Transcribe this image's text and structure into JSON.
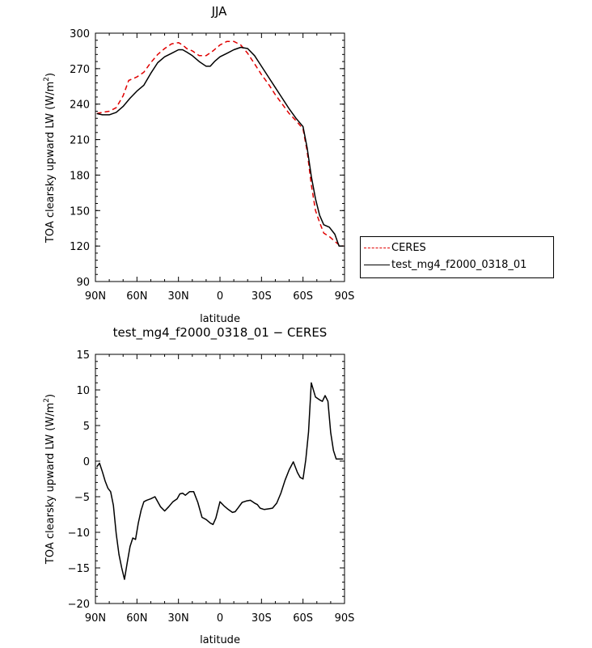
{
  "chart_data": [
    {
      "type": "line",
      "title": "JJA",
      "xlabel": "latitude",
      "ylabel": "TOA clearsky upward LW (W/m",
      "ylabel_sup": "2",
      "ylabel_end": ")",
      "xlim": [
        -90,
        90
      ],
      "ylim": [
        90,
        300
      ],
      "xtick_values": [
        -90,
        -60,
        -30,
        0,
        30,
        60,
        90
      ],
      "xtick_labels": [
        "90N",
        "60N",
        "30N",
        "0",
        "30S",
        "60S",
        "90S"
      ],
      "ytick_values": [
        90,
        120,
        150,
        180,
        210,
        240,
        270,
        300
      ],
      "ytick_labels": [
        "90",
        "120",
        "150",
        "180",
        "210",
        "240",
        "270",
        "300"
      ],
      "legend_position": "right",
      "series": [
        {
          "name": "CERES",
          "color": "#e00000",
          "dash": "dashed",
          "x": [
            -89,
            -85,
            -80,
            -75,
            -70,
            -66,
            -60,
            -55,
            -50,
            -45,
            -40,
            -35,
            -30,
            -27,
            -24,
            -20,
            -15,
            -10,
            -5,
            0,
            5,
            10,
            15,
            20,
            25,
            30,
            35,
            40,
            45,
            50,
            55,
            60,
            63,
            66,
            69,
            72,
            75,
            79,
            83,
            86,
            89
          ],
          "y": [
            232,
            233,
            234,
            237,
            247,
            260,
            263,
            267,
            275,
            282,
            287,
            291,
            292,
            290,
            287,
            285,
            281,
            281,
            285,
            290,
            293,
            293,
            290,
            283,
            274,
            265,
            257,
            248,
            240,
            232,
            226,
            219,
            200,
            172,
            150,
            140,
            131,
            128,
            124,
            121,
            120
          ]
        },
        {
          "name": "test_mg4_f2000_0318_01",
          "color": "#000000",
          "dash": "solid",
          "x": [
            -89,
            -85,
            -80,
            -75,
            -70,
            -65,
            -60,
            -55,
            -50,
            -45,
            -40,
            -35,
            -30,
            -27,
            -24,
            -20,
            -15,
            -10,
            -7,
            -4,
            0,
            5,
            10,
            15,
            20,
            25,
            30,
            35,
            40,
            45,
            50,
            55,
            60,
            63,
            66,
            69,
            72,
            75,
            79,
            83,
            86,
            89
          ],
          "y": [
            232,
            231,
            231,
            233,
            238,
            245,
            251,
            256,
            266,
            275,
            280,
            283,
            286,
            286,
            284,
            281,
            276,
            272,
            272,
            276,
            280,
            283,
            286,
            288,
            287,
            281,
            272,
            263,
            254,
            245,
            236,
            228,
            221,
            203,
            179,
            160,
            146,
            138,
            136,
            130,
            120,
            120
          ]
        }
      ]
    },
    {
      "type": "line",
      "title": "test_mg4_f2000_0318_01 − CERES",
      "xlabel": "latitude",
      "ylabel": "TOA clearsky upward LW (W/m",
      "ylabel_sup": "2",
      "ylabel_end": ")",
      "xlim": [
        -90,
        90
      ],
      "ylim": [
        -20,
        15
      ],
      "xtick_values": [
        -90,
        -60,
        -30,
        0,
        30,
        60,
        90
      ],
      "xtick_labels": [
        "90N",
        "60N",
        "30N",
        "0",
        "30S",
        "60S",
        "90S"
      ],
      "ytick_values": [
        -20,
        -15,
        -10,
        -5,
        0,
        5,
        10,
        15
      ],
      "ytick_labels": [
        "−20",
        "−15",
        "−10",
        "−5",
        "0",
        "5",
        "10",
        "15"
      ],
      "series": [
        {
          "color": "#000000",
          "dash": "solid",
          "x": [
            -89,
            -87,
            -85,
            -83,
            -81,
            -79,
            -77,
            -75,
            -73,
            -71,
            -69,
            -67,
            -65,
            -63,
            -61,
            -59,
            -57,
            -55,
            -53,
            -50,
            -47,
            -43,
            -40,
            -37,
            -34,
            -31,
            -29,
            -27,
            -25,
            -22,
            -19,
            -16,
            -13,
            -10,
            -7,
            -5,
            -3,
            0,
            3,
            6,
            9,
            11,
            13,
            16,
            19,
            22,
            25,
            27,
            29,
            32,
            35,
            38,
            41,
            44,
            47,
            50,
            53,
            56,
            58,
            60,
            62,
            64,
            66,
            69,
            72,
            74,
            76,
            78,
            80,
            82,
            84,
            86,
            88,
            89
          ],
          "y": [
            -0.8,
            -0.3,
            -1.5,
            -2.8,
            -3.8,
            -4.3,
            -6.2,
            -10.2,
            -13.1,
            -15.0,
            -16.6,
            -14.2,
            -12.0,
            -10.8,
            -11.0,
            -8.7,
            -6.9,
            -5.7,
            -5.5,
            -5.3,
            -5.0,
            -6.4,
            -7.0,
            -6.4,
            -5.7,
            -5.3,
            -4.6,
            -4.5,
            -4.8,
            -4.3,
            -4.3,
            -5.8,
            -7.9,
            -8.2,
            -8.7,
            -8.9,
            -8.0,
            -5.7,
            -6.3,
            -6.8,
            -7.2,
            -7.1,
            -6.6,
            -5.8,
            -5.6,
            -5.5,
            -5.9,
            -6.1,
            -6.6,
            -6.8,
            -6.7,
            -6.6,
            -5.9,
            -4.5,
            -2.7,
            -1.2,
            -0.1,
            -1.6,
            -2.3,
            -2.5,
            0.2,
            4.1,
            11.0,
            9.0,
            8.6,
            8.4,
            9.2,
            8.4,
            4.0,
            1.5,
            0.3,
            0.3,
            0.3,
            0.3
          ]
        }
      ]
    }
  ]
}
